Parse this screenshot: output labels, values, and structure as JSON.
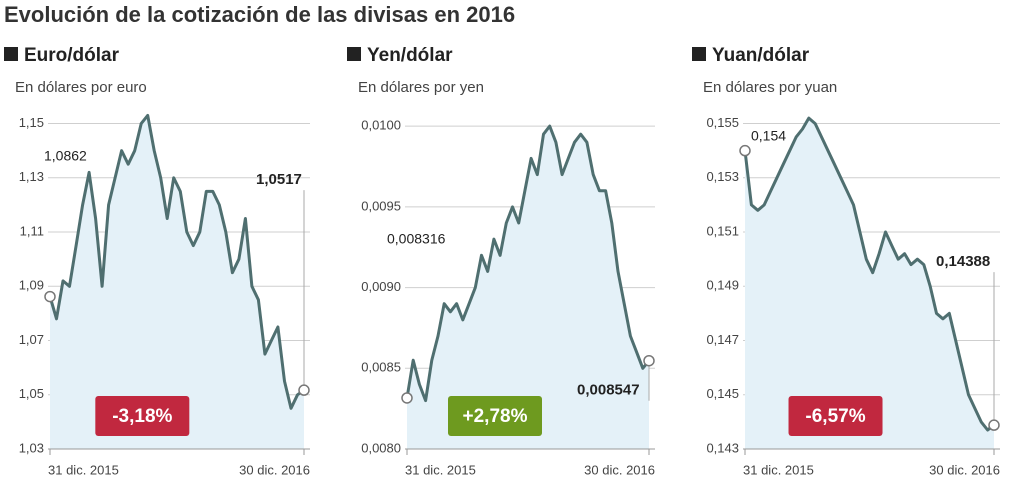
{
  "title": "Evolución de la cotización de las divisas en 2016",
  "chart_data": [
    {
      "type": "line",
      "title": "Euro/dólar",
      "subtitle": "En dólares por euro",
      "categories": [
        "31 dic. 2015",
        null,
        null,
        null,
        null,
        null,
        null,
        null,
        null,
        null,
        null,
        null,
        null,
        null,
        null,
        null,
        null,
        null,
        null,
        null,
        null,
        null,
        null,
        null,
        null,
        null,
        null,
        null,
        null,
        null,
        null,
        null,
        null,
        null,
        null,
        null,
        null,
        null,
        null,
        "30 dic. 2016"
      ],
      "values": [
        1.0862,
        1.078,
        1.092,
        1.09,
        1.105,
        1.12,
        1.132,
        1.115,
        1.09,
        1.12,
        1.13,
        1.14,
        1.135,
        1.14,
        1.15,
        1.153,
        1.14,
        1.13,
        1.115,
        1.13,
        1.125,
        1.11,
        1.105,
        1.11,
        1.125,
        1.125,
        1.12,
        1.11,
        1.095,
        1.1,
        1.115,
        1.09,
        1.085,
        1.065,
        1.07,
        1.075,
        1.055,
        1.045,
        1.05,
        1.0517
      ],
      "value_labels": [
        "1,0862",
        null,
        null,
        null,
        null,
        null,
        null,
        null,
        null,
        null,
        null,
        null,
        null,
        null,
        null,
        null,
        null,
        null,
        null,
        null,
        null,
        null,
        null,
        null,
        null,
        null,
        null,
        null,
        null,
        null,
        null,
        null,
        null,
        null,
        null,
        null,
        null,
        null,
        null,
        "1,0517"
      ],
      "color": "#4f6f70",
      "area_color": "#e4f1f8",
      "ylim": [
        1.03,
        1.155
      ],
      "yticks": [
        {
          "value": 1.03,
          "label": "1,03"
        },
        {
          "value": 1.05,
          "label": "1,05"
        },
        {
          "value": 1.07,
          "label": "1,07"
        },
        {
          "value": 1.09,
          "label": "1,09"
        },
        {
          "value": 1.11,
          "label": "1,11"
        },
        {
          "value": 1.13,
          "label": "1,13"
        },
        {
          "value": 1.15,
          "label": "1,15"
        }
      ],
      "grid": true,
      "change": {
        "value": -3.18,
        "label": "-3,18%",
        "color": "#c1283f"
      }
    },
    {
      "type": "line",
      "title": "Yen/dólar",
      "subtitle": "En dólares por yen",
      "categories": [
        "31 dic. 2015",
        null,
        null,
        null,
        null,
        null,
        null,
        null,
        null,
        null,
        null,
        null,
        null,
        null,
        null,
        null,
        null,
        null,
        null,
        null,
        null,
        null,
        null,
        null,
        null,
        null,
        null,
        null,
        null,
        null,
        null,
        null,
        null,
        null,
        null,
        null,
        null,
        null,
        null,
        "30 dic. 2016"
      ],
      "values": [
        0.008316,
        0.00855,
        0.0084,
        0.0083,
        0.00855,
        0.0087,
        0.0089,
        0.00885,
        0.0089,
        0.0088,
        0.0089,
        0.009,
        0.0092,
        0.0091,
        0.0093,
        0.0092,
        0.0094,
        0.0095,
        0.0094,
        0.0096,
        0.0098,
        0.0097,
        0.00995,
        0.01,
        0.0099,
        0.0097,
        0.0098,
        0.0099,
        0.00995,
        0.0099,
        0.0097,
        0.0096,
        0.0096,
        0.0094,
        0.0091,
        0.0089,
        0.0087,
        0.0086,
        0.0085,
        0.008547
      ],
      "value_labels": [
        "0,008316",
        null,
        null,
        null,
        null,
        null,
        null,
        null,
        null,
        null,
        null,
        null,
        null,
        null,
        null,
        null,
        null,
        null,
        null,
        null,
        null,
        null,
        null,
        null,
        null,
        null,
        null,
        null,
        null,
        null,
        null,
        null,
        null,
        null,
        null,
        null,
        null,
        null,
        null,
        "0,008547"
      ],
      "color": "#4f6f70",
      "area_color": "#e4f1f8",
      "ylim": [
        0.008,
        0.0101
      ],
      "yticks": [
        {
          "value": 0.008,
          "label": "0,0080"
        },
        {
          "value": 0.0085,
          "label": "0,0085"
        },
        {
          "value": 0.009,
          "label": "0,0090"
        },
        {
          "value": 0.0095,
          "label": "0,0095"
        },
        {
          "value": 0.01,
          "label": "0,0100"
        }
      ],
      "grid": true,
      "change": {
        "value": 2.78,
        "label": "+2,78%",
        "color": "#6e9a1f"
      }
    },
    {
      "type": "line",
      "title": "Yuan/dólar",
      "subtitle": "En dólares por yuan",
      "categories": [
        "31 dic. 2015",
        null,
        null,
        null,
        null,
        null,
        null,
        null,
        null,
        null,
        null,
        null,
        null,
        null,
        null,
        null,
        null,
        null,
        null,
        null,
        null,
        null,
        null,
        null,
        null,
        null,
        null,
        null,
        null,
        null,
        null,
        null,
        null,
        null,
        null,
        null,
        null,
        null,
        null,
        "30 dic. 2016"
      ],
      "values": [
        0.154,
        0.152,
        0.1518,
        0.152,
        0.1525,
        0.153,
        0.1535,
        0.154,
        0.1545,
        0.1548,
        0.1552,
        0.155,
        0.1545,
        0.154,
        0.1535,
        0.153,
        0.1525,
        0.152,
        0.151,
        0.15,
        0.1495,
        0.1502,
        0.151,
        0.1505,
        0.15,
        0.1502,
        0.1498,
        0.15,
        0.1498,
        0.149,
        0.148,
        0.1478,
        0.148,
        0.147,
        0.146,
        0.145,
        0.1445,
        0.144,
        0.1437,
        0.14388
      ],
      "value_labels": [
        "0,154",
        null,
        null,
        null,
        null,
        null,
        null,
        null,
        null,
        null,
        null,
        null,
        null,
        null,
        null,
        null,
        null,
        null,
        null,
        null,
        null,
        null,
        null,
        null,
        null,
        null,
        null,
        null,
        null,
        null,
        null,
        null,
        null,
        null,
        null,
        null,
        null,
        null,
        null,
        "0,14388"
      ],
      "color": "#4f6f70",
      "area_color": "#e4f1f8",
      "ylim": [
        0.143,
        0.1555
      ],
      "yticks": [
        {
          "value": 0.143,
          "label": "0,143"
        },
        {
          "value": 0.145,
          "label": "0,145"
        },
        {
          "value": 0.147,
          "label": "0,147"
        },
        {
          "value": 0.149,
          "label": "0,149"
        },
        {
          "value": 0.151,
          "label": "0,151"
        },
        {
          "value": 0.153,
          "label": "0,153"
        },
        {
          "value": 0.155,
          "label": "0,155"
        }
      ],
      "grid": true,
      "change": {
        "value": -6.57,
        "label": "-6,57%",
        "color": "#c1283f"
      }
    }
  ]
}
